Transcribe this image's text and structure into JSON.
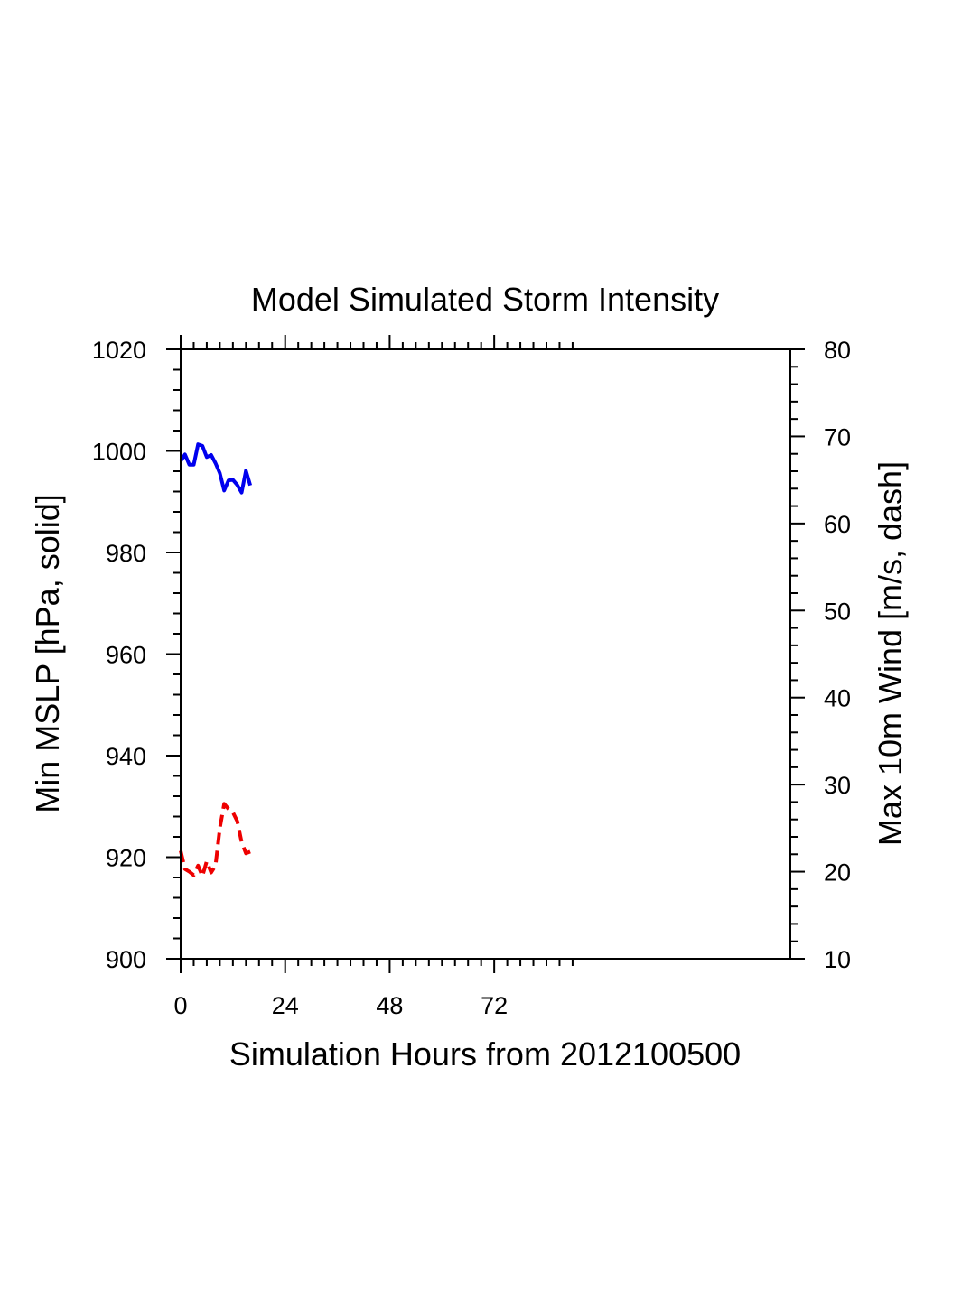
{
  "chart_data": {
    "type": "line",
    "title": "Model Simulated Storm Intensity",
    "xlabel": "Simulation Hours from 2012100500",
    "ylabel_left": "Min MSLP  [hPa, solid]",
    "ylabel_right": "Max 10m Wind  [m/s, dash]",
    "xlim": [
      0,
      140
    ],
    "ylim_left": [
      900,
      1020
    ],
    "ylim_right": [
      10,
      80
    ],
    "x_ticks": [
      0,
      24,
      48,
      72
    ],
    "x_tick_labels": [
      "0",
      "24",
      "48",
      "72"
    ],
    "y_left_ticks": [
      900,
      920,
      940,
      960,
      980,
      1000,
      1020
    ],
    "y_left_tick_labels": [
      "900",
      "920",
      "940",
      "960",
      "980",
      "1000",
      "1020"
    ],
    "y_right_ticks": [
      10,
      20,
      30,
      40,
      50,
      60,
      70,
      80
    ],
    "y_right_tick_labels": [
      "10",
      "20",
      "30",
      "40",
      "50",
      "60",
      "70",
      "80"
    ],
    "series": [
      {
        "name": "Min MSLP",
        "axis": "left",
        "style": "solid",
        "color": "#0000ee",
        "x": [
          0,
          1,
          2,
          3,
          4,
          5,
          6,
          7,
          8,
          9,
          10,
          11,
          12,
          13,
          14,
          15,
          16
        ],
        "y": [
          998,
          999.3,
          997.3,
          997.3,
          1001.3,
          1001,
          998.8,
          999.2,
          997.6,
          995.6,
          992.2,
          994.2,
          994.3,
          993.3,
          991.8,
          996.1,
          993.2
        ]
      },
      {
        "name": "Max 10m Wind",
        "axis": "right",
        "style": "dashed",
        "color": "#ee0000",
        "x": [
          0,
          1,
          2,
          3,
          4,
          5,
          6,
          7,
          8,
          9,
          10,
          11,
          12,
          13,
          14,
          15,
          16
        ],
        "y": [
          22.4,
          20.3,
          20.0,
          19.6,
          20.7,
          19.5,
          21.2,
          19.9,
          20.7,
          25.0,
          27.8,
          27.2,
          26.8,
          25.8,
          23.4,
          22.1,
          22.3
        ]
      }
    ]
  }
}
